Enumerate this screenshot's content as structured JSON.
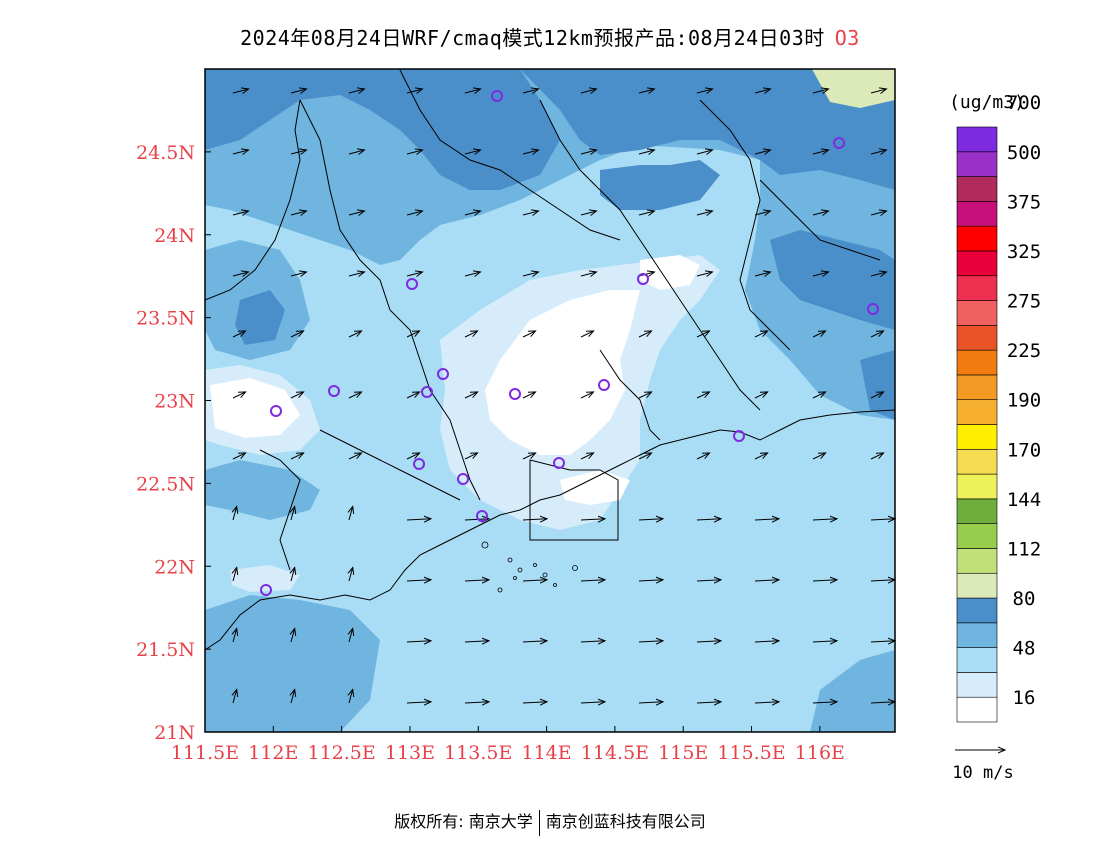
{
  "title": {
    "main": "2024年08月24日WRF/cmaq模式12km预报产品:08月24日03时",
    "species": "O3"
  },
  "map": {
    "lon_ticks": [
      "111.5E",
      "112E",
      "112.5E",
      "113E",
      "113.5E",
      "114E",
      "114.5E",
      "115E",
      "115.5E",
      "116E"
    ],
    "lat_ticks": [
      "21N",
      "21.5N",
      "22N",
      "22.5N",
      "23N",
      "23.5N",
      "24N",
      "24.5N"
    ],
    "extent": {
      "lon_min": 111.5,
      "lon_max": 116.55,
      "lat_min": 21.0,
      "lat_max": 25.0
    },
    "tick_label_color": "#e8414a"
  },
  "legend": {
    "unit": "(ug/m3)",
    "labels": [
      "16",
      "48",
      "80",
      "112",
      "144",
      "170",
      "190",
      "225",
      "275",
      "325",
      "375",
      "500",
      "700"
    ],
    "colors": [
      "#ffffff",
      "#d6ecfa",
      "#a9dcf5",
      "#6fb5e0",
      "#4a8fca",
      "#dce9b8",
      "#c2e07a",
      "#98cc4c",
      "#6fae3c",
      "#eef25a",
      "#f6dc50",
      "#ffee00",
      "#f7b030",
      "#f39a25",
      "#f07c10",
      "#e85428",
      "#f06060",
      "#ee3050",
      "#e8003a",
      "#ff0000",
      "#c8107a",
      "#b02a5c",
      "#9a30c8",
      "#7d2ae0"
    ],
    "wind_scale": "10 m/s"
  },
  "monitoring_sites": 17,
  "footer": {
    "left": "版权所有: 南京大学",
    "right": "南京创蓝科技有限公司"
  }
}
